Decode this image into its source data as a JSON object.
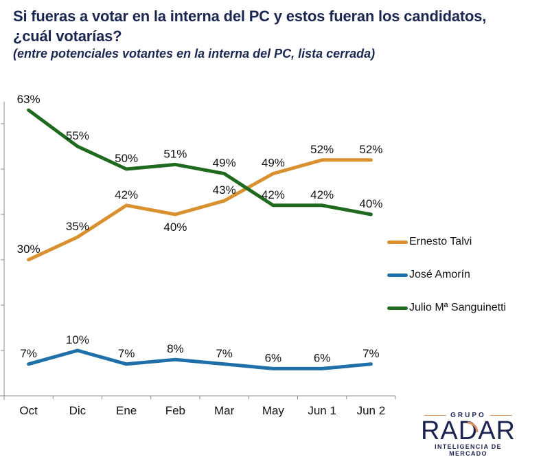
{
  "header": {
    "title": "Si fueras a votar en la interna del PC y estos fueran los candidatos, ¿cuál votarías?",
    "subtitle": "(entre potenciales votantes en la interna del PC, lista cerrada)"
  },
  "chart_data": {
    "type": "line",
    "title": "Si fueras a votar en la interna del PC y estos fueran los candidatos, ¿cuál votarías?",
    "subtitle": "(entre potenciales votantes en la interna del PC, lista cerrada)",
    "xlabel": "",
    "ylabel": "",
    "categories": [
      "Oct",
      "Dic",
      "Ene",
      "Feb",
      "Mar",
      "May",
      "Jun 1",
      "Jun 2"
    ],
    "ylim": [
      0,
      70
    ],
    "y_tick_step": 10,
    "y_tick_labels_visible": false,
    "grid": false,
    "legend_position": "right",
    "series": [
      {
        "name": "Ernesto Talvi",
        "color": "#d9902f",
        "values": [
          30,
          35,
          42,
          40,
          43,
          49,
          52,
          52
        ],
        "labels": [
          "30%",
          "35%",
          "42%",
          "40%",
          "43%",
          "49%",
          "52%",
          "52%"
        ],
        "label_pos": [
          "above",
          "above",
          "above",
          "below",
          "above",
          "above",
          "above",
          "above"
        ]
      },
      {
        "name": "José Amorín",
        "color": "#1f6fa8",
        "values": [
          7,
          10,
          7,
          8,
          7,
          6,
          6,
          7
        ],
        "labels": [
          "7%",
          "10%",
          "7%",
          "8%",
          "7%",
          "6%",
          "6%",
          "7%"
        ],
        "label_pos": [
          "above",
          "above",
          "above",
          "above",
          "above",
          "above",
          "above",
          "above"
        ]
      },
      {
        "name": "Julio Mª Sanguinetti",
        "color": "#1f6a1f",
        "values": [
          63,
          55,
          50,
          51,
          49,
          42,
          42,
          40
        ],
        "labels": [
          "63%",
          "55%",
          "50%",
          "51%",
          "49%",
          "42%",
          "42%",
          "40%"
        ],
        "label_pos": [
          "above",
          "above",
          "above",
          "above",
          "above",
          "above",
          "above",
          "above"
        ]
      }
    ]
  },
  "legend": [
    {
      "label": "Ernesto Talvi",
      "color": "#d9902f"
    },
    {
      "label": "José Amorín",
      "color": "#1f6fa8"
    },
    {
      "label": "Julio Mª Sanguinetti",
      "color": "#1f6a1f"
    }
  ],
  "logo": {
    "top": "GRUPO",
    "name": "RADAR",
    "tagline": "INTELIGENCIA DE MERCADO",
    "accent_color": "#d9905a",
    "text_color": "#1c2350"
  }
}
